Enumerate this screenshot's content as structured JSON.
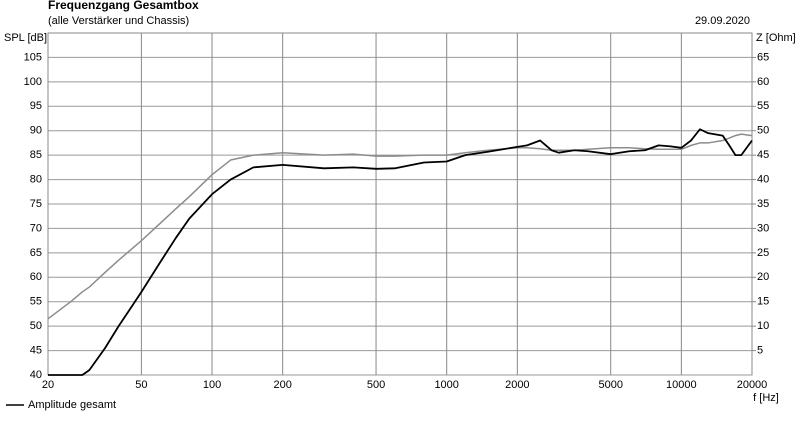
{
  "chart_data": {
    "type": "line",
    "title": "Frequenzgang Gesamtbox",
    "subtitle": "(alle Verstärker und Chassis)",
    "date": "29.09.2020",
    "y_label": "SPL [dB]",
    "y2_label": "Z [Ohm]",
    "x_label": "f [Hz]",
    "x_scale": "log",
    "grid": true,
    "legend": "bottom-left",
    "x": [
      20,
      25,
      28,
      30,
      35,
      40,
      50,
      60,
      70,
      80,
      100,
      120,
      150,
      200,
      300,
      400,
      500,
      600,
      800,
      1000,
      1200,
      1500,
      2000,
      2200,
      2500,
      2800,
      3000,
      3500,
      4000,
      5000,
      6000,
      7000,
      8000,
      9000,
      10000,
      11000,
      12000,
      13000,
      15000,
      16000,
      17000,
      18000,
      20000
    ],
    "series": [
      {
        "name": "Amplitude gesamt",
        "color": "#000000",
        "values": [
          40,
          40,
          40,
          41,
          45.5,
          50,
          57,
          63,
          68,
          72,
          77,
          80,
          82.5,
          83,
          82.3,
          82.5,
          82.2,
          82.3,
          83.5,
          83.7,
          85,
          85.7,
          86.7,
          87,
          88,
          86,
          85.5,
          86,
          85.8,
          85.2,
          85.8,
          86,
          87,
          86.8,
          86.5,
          88,
          90.3,
          89.5,
          89,
          87,
          85,
          85,
          88
        ]
      },
      {
        "color": "#8c8c8c",
        "values": [
          51.5,
          55,
          57,
          58,
          61,
          63.5,
          67.5,
          71,
          74,
          76.5,
          81,
          84,
          85,
          85.5,
          85,
          85.2,
          84.8,
          84.8,
          85,
          85,
          85.5,
          86,
          86.5,
          86.5,
          86.3,
          86,
          86,
          86,
          86.2,
          86.5,
          86.5,
          86.3,
          86.2,
          86.2,
          86.2,
          87,
          87.5,
          87.5,
          88,
          88.5,
          89,
          89.3,
          89
        ]
      }
    ],
    "xlim": [
      20,
      20000
    ],
    "xticks": [
      20,
      50,
      100,
      200,
      500,
      1000,
      2000,
      5000,
      10000,
      20000
    ],
    "ylim": [
      40,
      110
    ],
    "yticks": [
      40,
      45,
      50,
      55,
      60,
      65,
      70,
      75,
      80,
      85,
      90,
      95,
      100,
      105
    ],
    "y2lim": [
      0,
      70
    ],
    "y2ticks": [
      5,
      10,
      15,
      20,
      25,
      30,
      35,
      40,
      45,
      50,
      55,
      60,
      65
    ]
  }
}
